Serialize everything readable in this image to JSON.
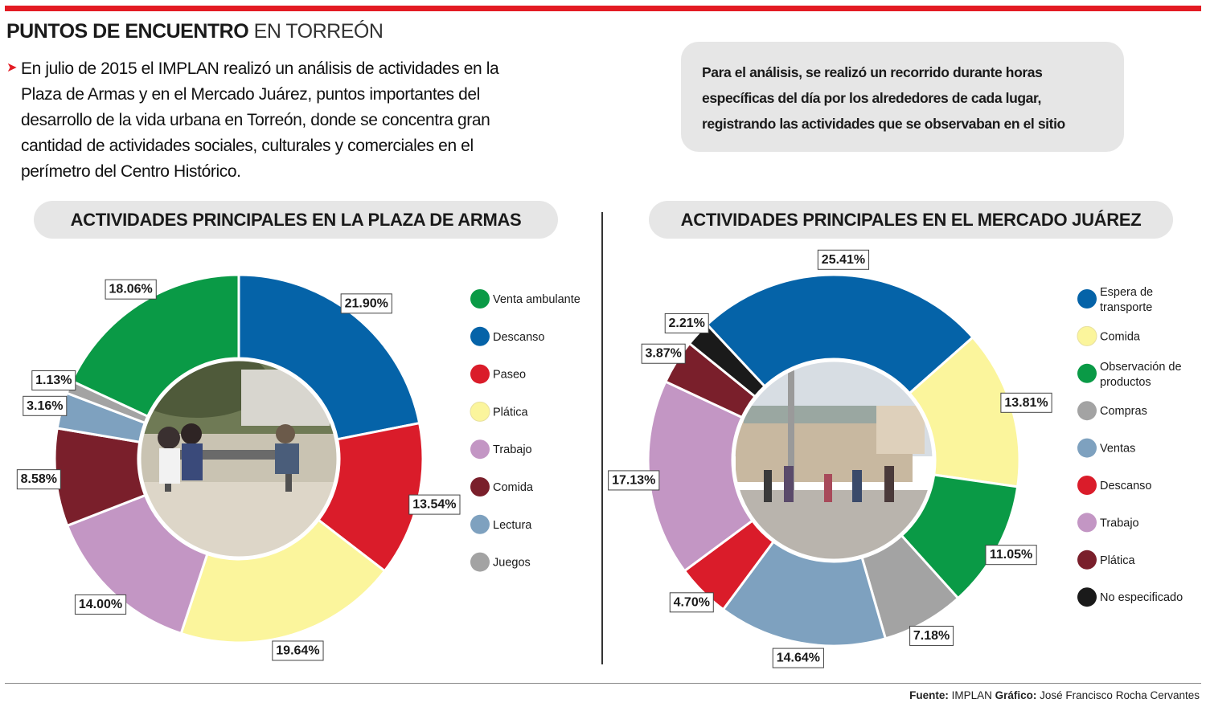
{
  "header": {
    "title_bold": "PUNTOS DE ENCUENTRO",
    "title_light": "EN TORREÓN",
    "intro": "En julio de 2015 el IMPLAN realizó un análisis de actividades en la Plaza de Armas y en el Mercado Juárez, puntos importantes del desarrollo de la vida urbana en Torreón, donde se concentra gran cantidad de actividades sociales, culturales y comerciales en el perímetro del Centro Histórico.",
    "note": "Para el análisis, se realizó un recorrido durante horas específicas del día por los alrededores de cada lugar, registrando las actividades que se observaban en el sitio"
  },
  "footer": {
    "source_label": "Fuente:",
    "source_value": "IMPLAN",
    "credit_label": "Gráfico:",
    "credit_value": "José Francisco Rocha Cervantes"
  },
  "colors": {
    "accent": "#e31b23"
  },
  "chart_data": [
    {
      "type": "pie",
      "subtype": "donut",
      "title": "ACTIVIDADES PRINCIPALES EN LA PLAZA DE ARMAS",
      "center_image": "plaza-photo",
      "series": [
        {
          "label": "Venta ambulante",
          "value": 18.06,
          "display": "18.06%",
          "color": "#0a9a46"
        },
        {
          "label": "Descanso",
          "value": 21.9,
          "display": "21.90%",
          "color": "#0563a8"
        },
        {
          "label": "Paseo",
          "value": 13.54,
          "display": "13.54%",
          "color": "#da1c2a"
        },
        {
          "label": "Plática",
          "value": 19.64,
          "display": "19.64%",
          "color": "#fbf59c"
        },
        {
          "label": "Trabajo",
          "value": 14.0,
          "display": "14.00%",
          "color": "#c396c4"
        },
        {
          "label": "Comida",
          "value": 8.58,
          "display": "8.58%",
          "color": "#7a1f2b"
        },
        {
          "label": "Lectura",
          "value": 3.16,
          "display": "3.16%",
          "color": "#7ea1bf"
        },
        {
          "label": "Juegos",
          "value": 1.13,
          "display": "1.13%",
          "color": "#a3a3a3"
        }
      ],
      "slice_order": [
        "Descanso",
        "Paseo",
        "Plática",
        "Trabajo",
        "Comida",
        "Lectura",
        "Juegos",
        "Venta ambulante"
      ]
    },
    {
      "type": "pie",
      "subtype": "donut",
      "title": "ACTIVIDADES PRINCIPALES EN EL MERCADO JUÁREZ",
      "center_image": "market-photo",
      "series": [
        {
          "label": "Espera de transporte",
          "value": 25.41,
          "display": "25.41%",
          "color": "#0563a8"
        },
        {
          "label": "Comida",
          "value": 13.81,
          "display": "13.81%",
          "color": "#fbf59c"
        },
        {
          "label": "Observación de productos",
          "value": 11.05,
          "display": "11.05%",
          "color": "#0a9a46"
        },
        {
          "label": "Compras",
          "value": 7.18,
          "display": "7.18%",
          "color": "#a3a3a3"
        },
        {
          "label": "Ventas",
          "value": 14.64,
          "display": "14.64%",
          "color": "#7ea1bf"
        },
        {
          "label": "Descanso",
          "value": 4.7,
          "display": "4.70%",
          "color": "#da1c2a"
        },
        {
          "label": "Trabajo",
          "value": 17.13,
          "display": "17.13%",
          "color": "#c396c4"
        },
        {
          "label": "Plática",
          "value": 3.87,
          "display": "3.87%",
          "color": "#7a1f2b"
        },
        {
          "label": "No especificado",
          "value": 2.21,
          "display": "2.21%",
          "color": "#1a1a1a"
        }
      ],
      "slice_order": [
        "Espera de transporte",
        "Comida",
        "Observación de productos",
        "Compras",
        "Ventas",
        "Descanso",
        "Trabajo",
        "Plática",
        "No especificado"
      ]
    }
  ]
}
